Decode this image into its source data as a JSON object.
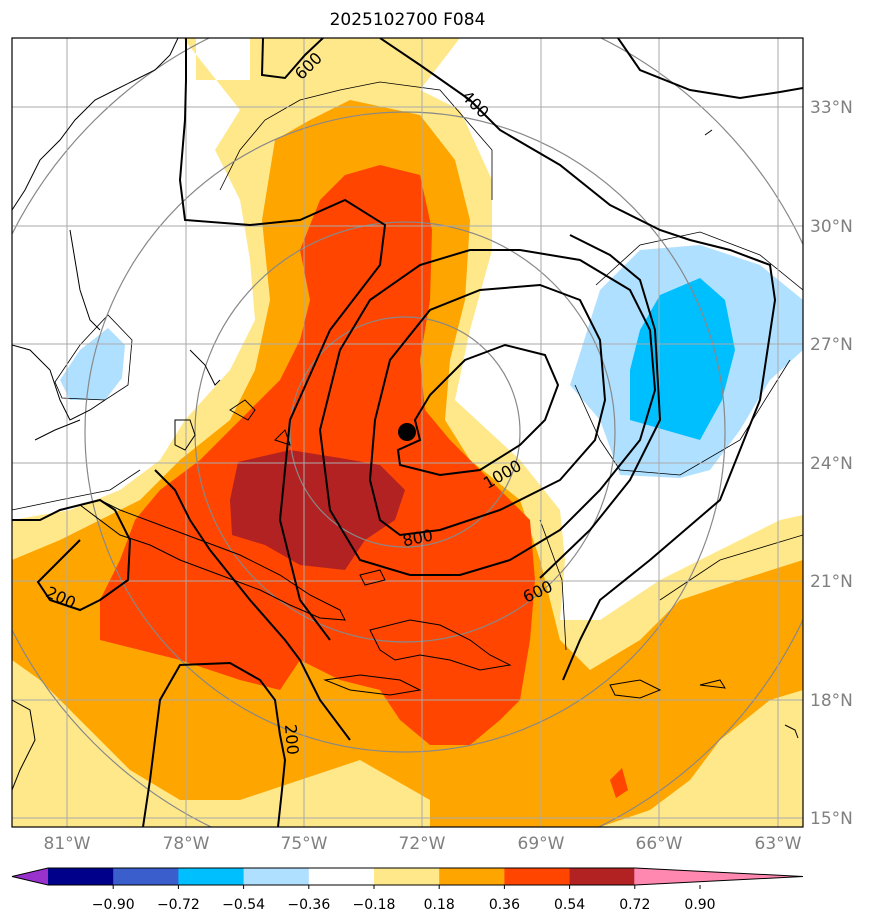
{
  "title": "2025102700 F084",
  "map": {
    "lat_labels": [
      "33°N",
      "30°N",
      "27°N",
      "24°N",
      "21°N",
      "18°N",
      "15°N"
    ],
    "lon_labels": [
      "81°W",
      "78°W",
      "75°W",
      "72°W",
      "69°W",
      "66°W",
      "63°W"
    ],
    "contour_labels": [
      "600",
      "400",
      "1000",
      "800",
      "600",
      "200",
      "200"
    ],
    "storm_center": "black-dot"
  },
  "colorbar": {
    "ticks": [
      "−0.90",
      "−0.72",
      "−0.54",
      "−0.36",
      "−0.18",
      "0.18",
      "0.36",
      "0.54",
      "0.72",
      "0.90"
    ],
    "colors": [
      "#9932cc",
      "#00008b",
      "#3a5fcd",
      "#00bfff",
      "#b0e0ff",
      "#ffffff",
      "#ffe88a",
      "#ffa500",
      "#ff4500",
      "#b22222",
      "#ff88b0"
    ]
  },
  "fill_colors": {
    "yellow": "#ffe88a",
    "orange": "#ffa500",
    "red": "#ff4500",
    "darkred": "#b22222",
    "lightblue": "#b0e0ff",
    "blue": "#00bfff"
  }
}
